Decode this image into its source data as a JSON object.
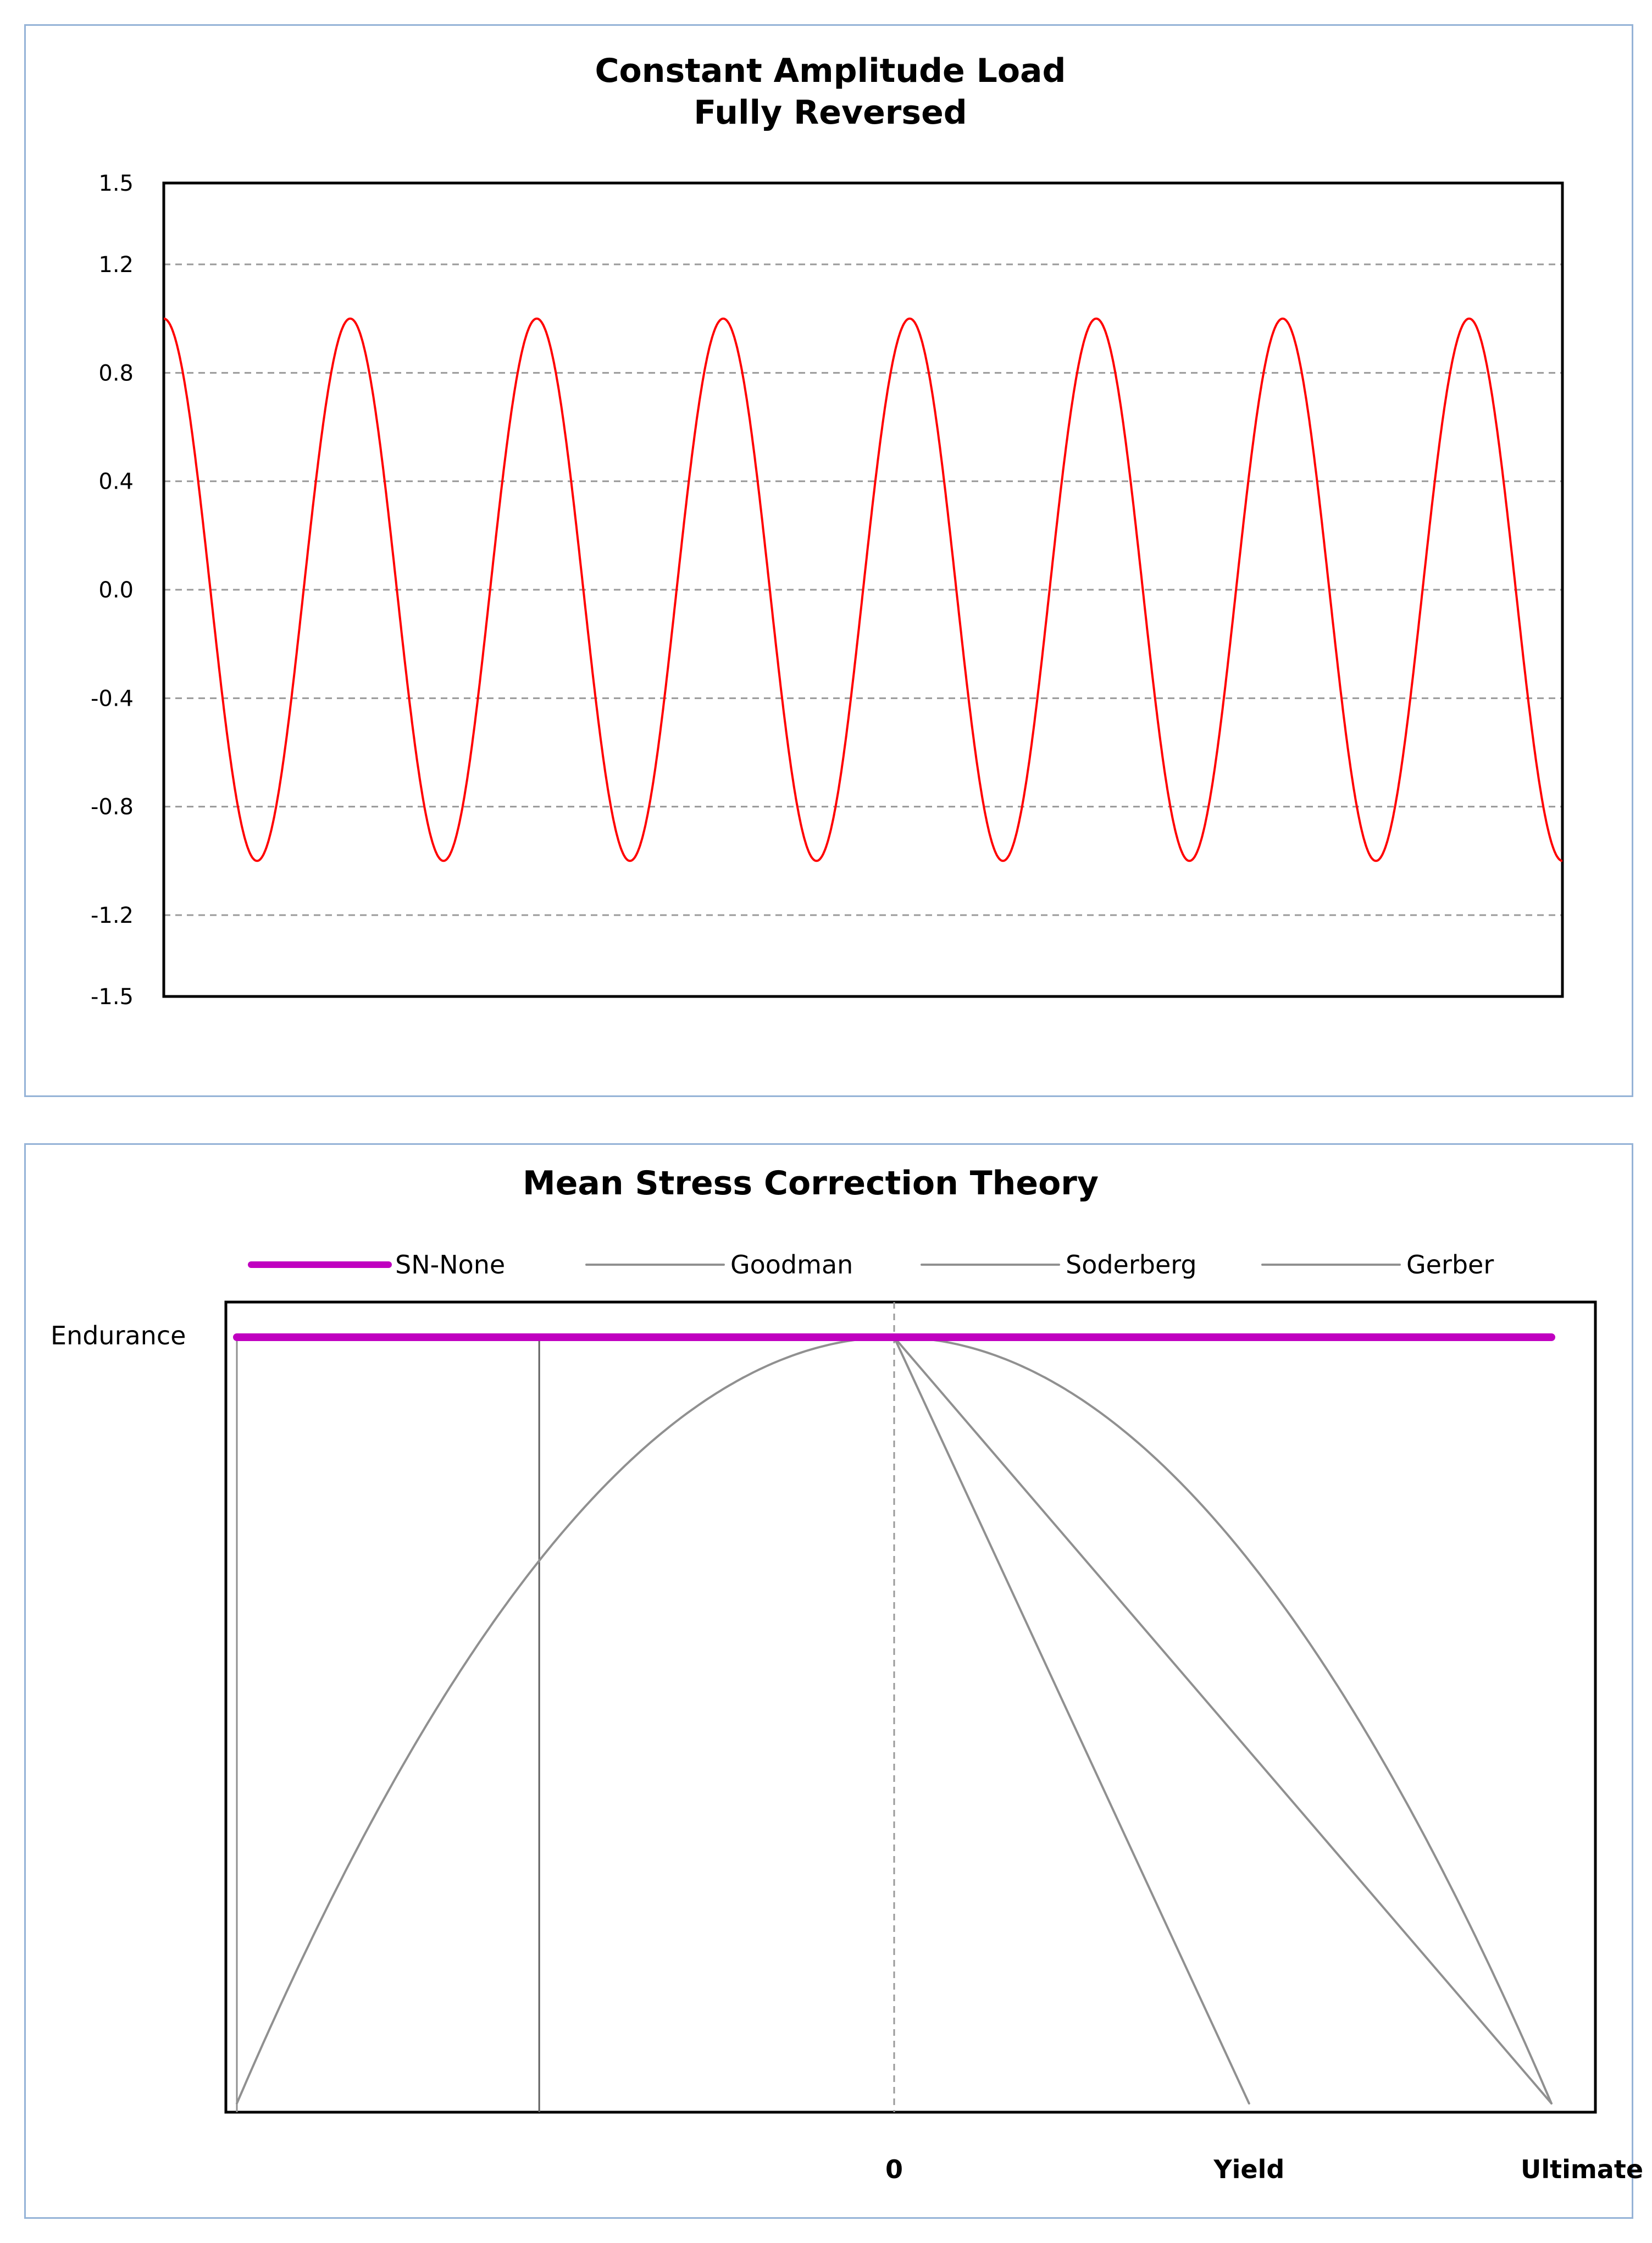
{
  "chart_data": [
    {
      "type": "line",
      "title": "Constant Amplitude Load",
      "subtitle": "Fully Reversed",
      "ylim": [
        -1.5,
        1.5
      ],
      "yticks": [
        "1.5",
        "1.2",
        "0.8",
        "0.4",
        "0.0",
        "-0.4",
        "-0.8",
        "-1.2",
        "-1.5"
      ],
      "grid": true,
      "series": [
        {
          "color": "#ff0000",
          "shape": "cosine",
          "amplitude": 1.0,
          "cycles": 7.5,
          "x": [
            0,
            0.5,
            1,
            1.5,
            2,
            2.5,
            3,
            3.5,
            4,
            4.5,
            5,
            5.5,
            6,
            6.5,
            7,
            7.5
          ],
          "y": [
            1,
            -1,
            1,
            -1,
            1,
            -1,
            1,
            -1,
            1,
            -1,
            1,
            -1,
            1,
            -1,
            1,
            -1
          ]
        }
      ]
    },
    {
      "type": "line",
      "title": "Mean Stress Correction Theory",
      "ylabel": "Endurance",
      "xtick_labels": [
        "0",
        "Yield",
        "Ultimate"
      ],
      "xlim": [
        -1,
        1
      ],
      "ylim": [
        0,
        1
      ],
      "legend_position": "top",
      "series": [
        {
          "name": "SN-None",
          "color": "#c000c0",
          "x": [
            -1,
            1
          ],
          "y": [
            1,
            1
          ]
        },
        {
          "name": "Goodman",
          "color": "#909090",
          "x": [
            0,
            1
          ],
          "y": [
            1,
            0
          ]
        },
        {
          "name": "Soderberg",
          "color": "#909090",
          "x": [
            0,
            0.54
          ],
          "y": [
            1,
            0
          ]
        },
        {
          "name": "Gerber",
          "color": "#909090",
          "x": [
            -1,
            -0.8,
            -0.6,
            -0.4,
            -0.2,
            0,
            0.2,
            0.4,
            0.6,
            0.8,
            1
          ],
          "y": [
            0,
            0.36,
            0.64,
            0.84,
            0.96,
            1,
            0.96,
            0.84,
            0.64,
            0.36,
            0
          ]
        }
      ],
      "vertical_lines": [
        {
          "x": -1,
          "color": "#909090"
        },
        {
          "x": -0.54,
          "color": "#606060"
        }
      ],
      "zero_line": {
        "x": 0,
        "style": "dashed"
      }
    }
  ]
}
